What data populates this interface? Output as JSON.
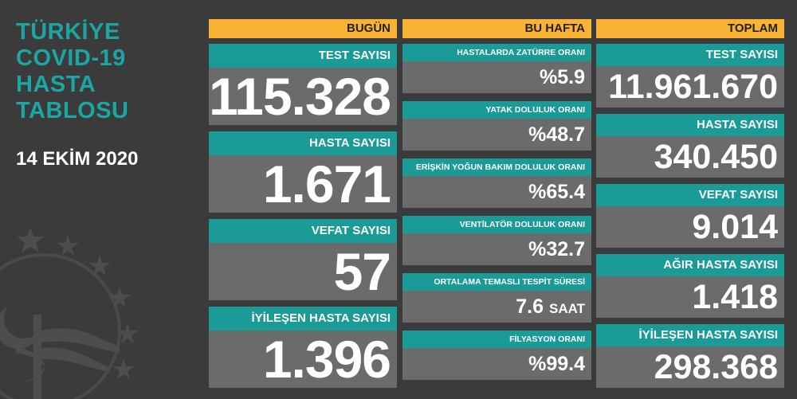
{
  "title_lines": [
    "TÜRKİYE",
    "COVID-19",
    "HASTA",
    "TABLOSU"
  ],
  "date": "14 EKİM 2020",
  "colors": {
    "background": "#3b3b3b",
    "accent": "#1a9b98",
    "header": "#f9b233",
    "card": "#6b6b6b",
    "title": "#1aa6a3"
  },
  "today": {
    "header": "BUGÜN",
    "cards": [
      {
        "label": "TEST SAYISI",
        "value": "115.328"
      },
      {
        "label": "HASTA SAYISI",
        "value": "1.671"
      },
      {
        "label": "VEFAT SAYISI",
        "value": "57"
      },
      {
        "label": "İYİLEŞEN HASTA SAYISI",
        "value": "1.396"
      }
    ]
  },
  "week": {
    "header": "BU HAFTA",
    "cards": [
      {
        "label": "HASTALARDA ZATÜRRE ORANI",
        "value": "%5.9",
        "unit": ""
      },
      {
        "label": "YATAK DOLULUK ORANI",
        "value": "%48.7",
        "unit": ""
      },
      {
        "label": "ERİŞKİN YOĞUN BAKIM DOLULUK ORANI",
        "value": "%65.4",
        "unit": ""
      },
      {
        "label": "VENTİLATÖR DOLULUK ORANI",
        "value": "%32.7",
        "unit": ""
      },
      {
        "label": "ORTALAMA TEMASLI TESPİT SÜRESİ",
        "value": "7.6",
        "unit": "SAAT"
      },
      {
        "label": "FİLYASYON ORANI",
        "value": "%99.4",
        "unit": ""
      }
    ]
  },
  "total": {
    "header": "TOPLAM",
    "cards": [
      {
        "label": "TEST SAYISI",
        "value": "11.961.670"
      },
      {
        "label": "HASTA SAYISI",
        "value": "340.450"
      },
      {
        "label": "VEFAT SAYISI",
        "value": "9.014"
      },
      {
        "label": "AĞIR HASTA SAYISI",
        "value": "1.418"
      },
      {
        "label": "İYİLEŞEN HASTA SAYISI",
        "value": "298.368"
      }
    ]
  }
}
